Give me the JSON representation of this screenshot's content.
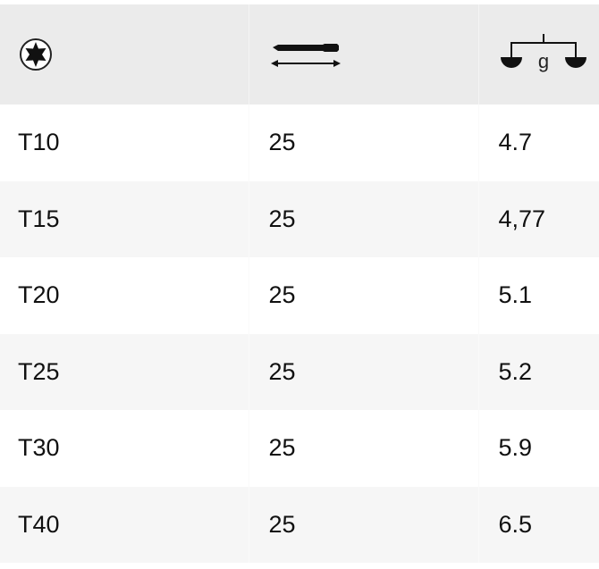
{
  "header": {
    "columns": [
      {
        "icon": "torx-drive-icon"
      },
      {
        "icon": "bit-length-icon"
      },
      {
        "icon": "weight-scale-icon",
        "label": "g"
      }
    ]
  },
  "rows": [
    {
      "size": "T10",
      "length": "25",
      "weight": "4.7"
    },
    {
      "size": "T15",
      "length": "25",
      "weight": "4,77"
    },
    {
      "size": "T20",
      "length": "25",
      "weight": "5.1"
    },
    {
      "size": "T25",
      "length": "25",
      "weight": "5.2"
    },
    {
      "size": "T30",
      "length": "25",
      "weight": "5.9"
    },
    {
      "size": "T40",
      "length": "25",
      "weight": "6.5"
    }
  ]
}
